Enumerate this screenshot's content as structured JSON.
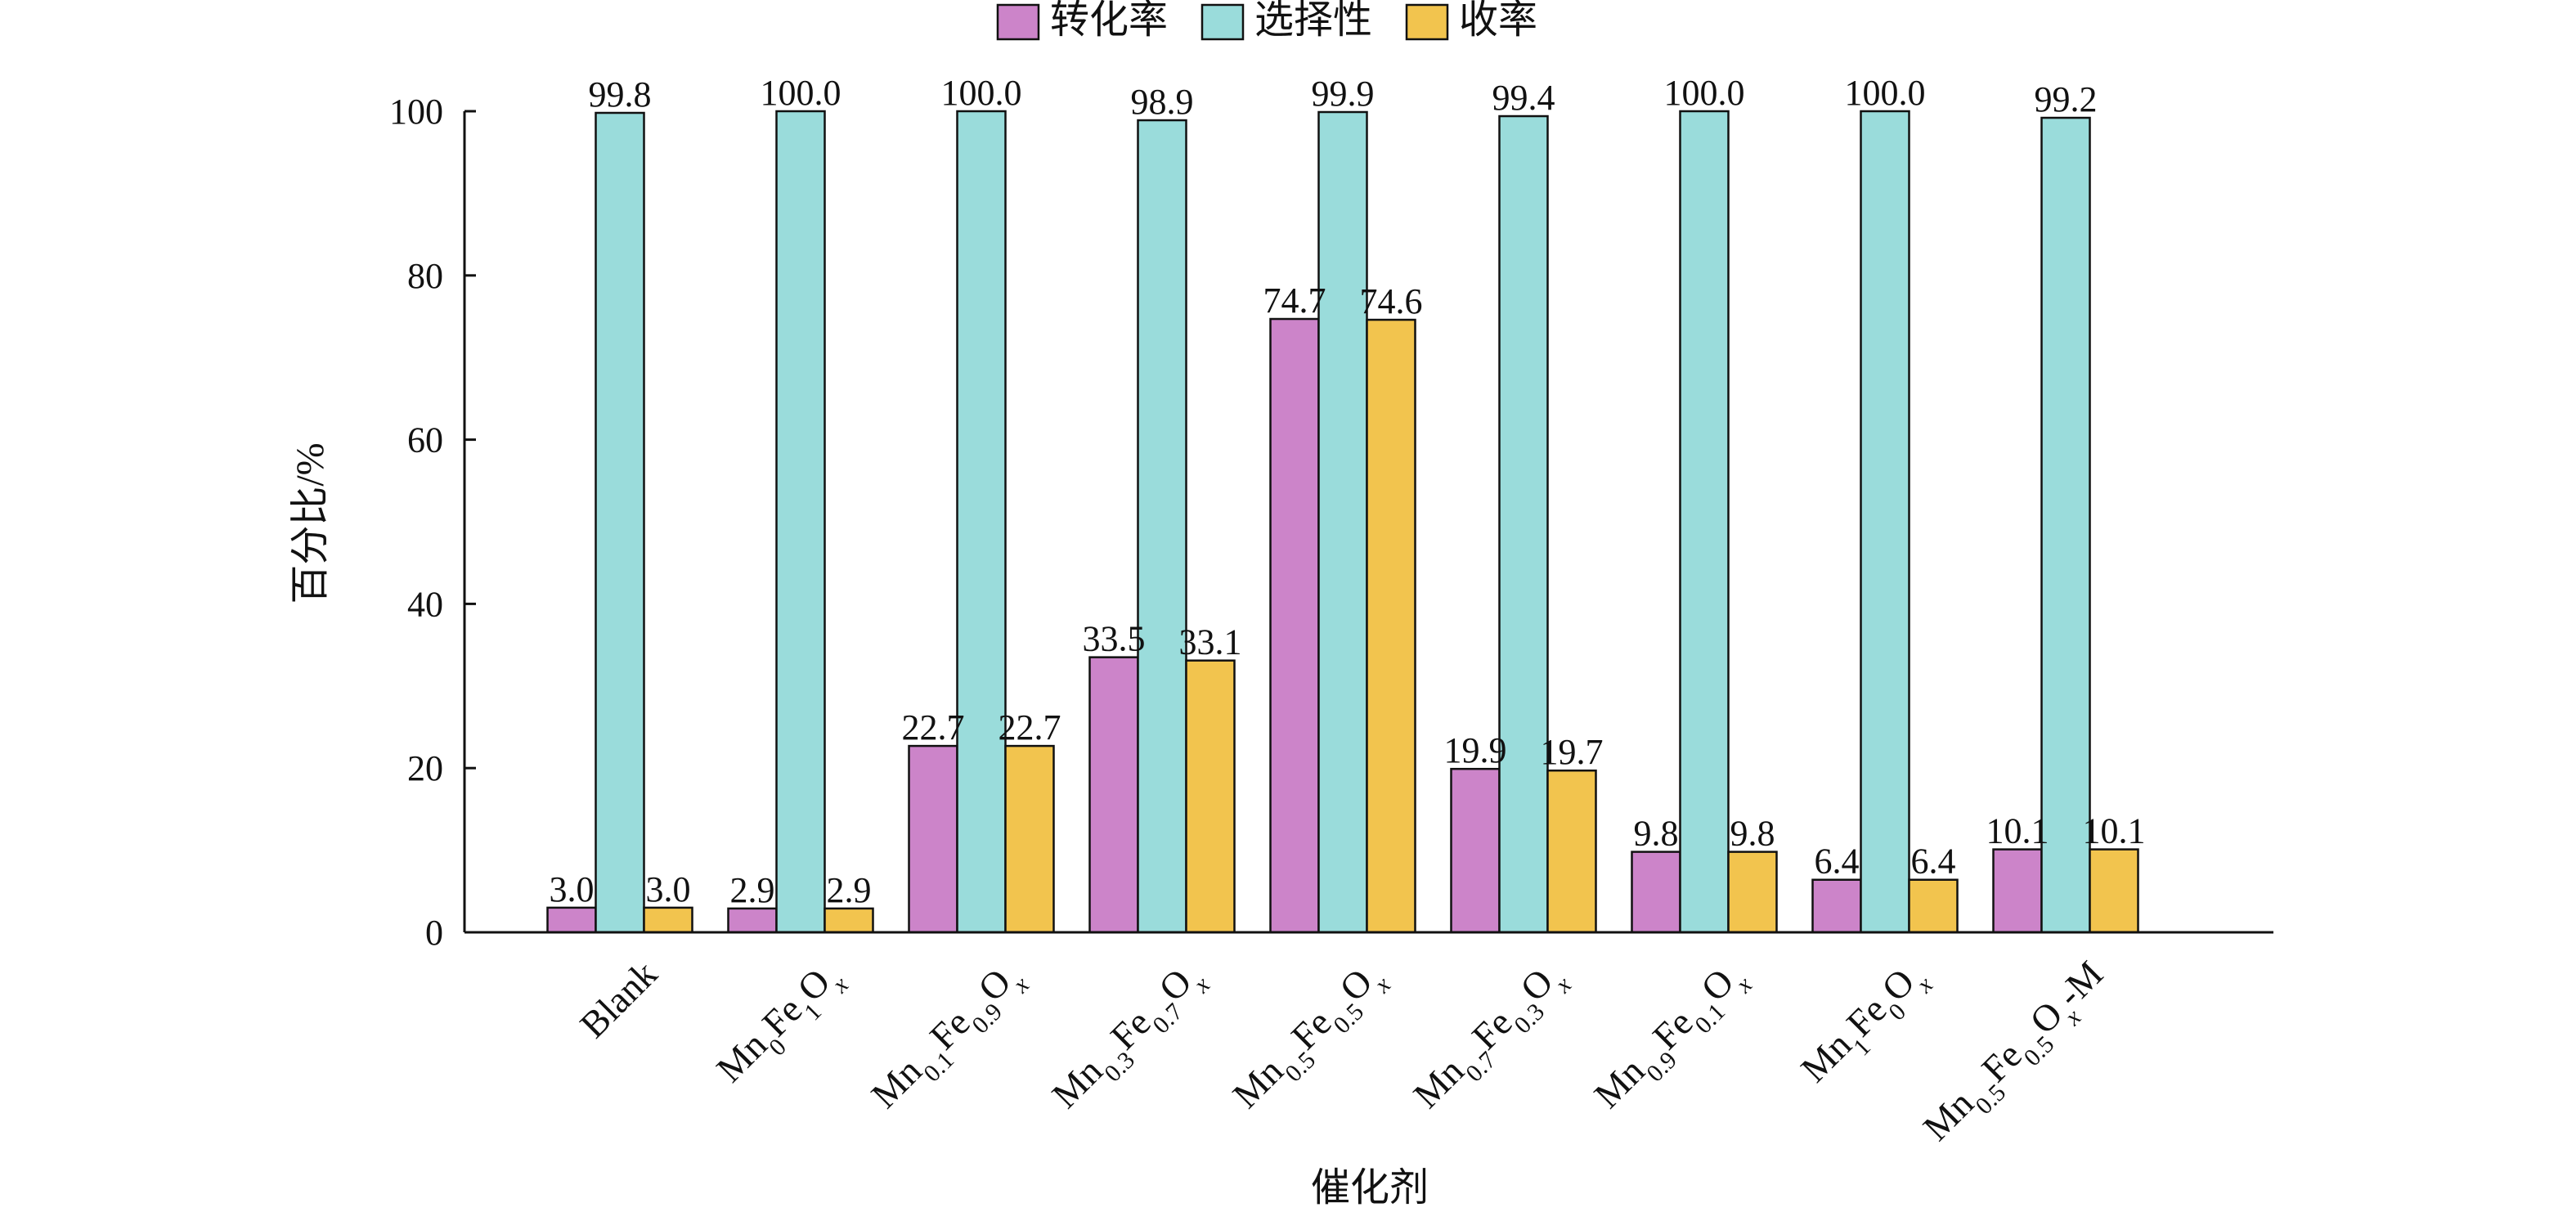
{
  "chart_data": {
    "type": "bar",
    "title": "",
    "xlabel": "催化剂",
    "ylabel": "百分比/%",
    "ylim": [
      0,
      100
    ],
    "yticks": [
      0,
      20,
      40,
      60,
      80,
      100
    ],
    "grid": false,
    "legend_position": "top-center",
    "categories": [
      [
        {
          "t": "Blank"
        }
      ],
      [
        {
          "t": "Mn"
        },
        {
          "t": "0",
          "sub": true
        },
        {
          "t": "Fe"
        },
        {
          "t": "1",
          "sub": true
        },
        {
          "t": "O"
        },
        {
          "t": "x",
          "sub": true,
          "italic": true
        }
      ],
      [
        {
          "t": "Mn"
        },
        {
          "t": "0.1",
          "sub": true
        },
        {
          "t": "Fe"
        },
        {
          "t": "0.9",
          "sub": true
        },
        {
          "t": "O"
        },
        {
          "t": "x",
          "sub": true,
          "italic": true
        }
      ],
      [
        {
          "t": "Mn"
        },
        {
          "t": "0.3",
          "sub": true
        },
        {
          "t": "Fe"
        },
        {
          "t": "0.7",
          "sub": true
        },
        {
          "t": "O"
        },
        {
          "t": "x",
          "sub": true,
          "italic": true
        }
      ],
      [
        {
          "t": "Mn"
        },
        {
          "t": "0.5",
          "sub": true
        },
        {
          "t": "Fe"
        },
        {
          "t": "0.5",
          "sub": true
        },
        {
          "t": "O"
        },
        {
          "t": "x",
          "sub": true,
          "italic": true
        }
      ],
      [
        {
          "t": "Mn"
        },
        {
          "t": "0.7",
          "sub": true
        },
        {
          "t": "Fe"
        },
        {
          "t": "0.3",
          "sub": true
        },
        {
          "t": "O"
        },
        {
          "t": "x",
          "sub": true,
          "italic": true
        }
      ],
      [
        {
          "t": "Mn"
        },
        {
          "t": "0.9",
          "sub": true
        },
        {
          "t": "Fe"
        },
        {
          "t": "0.1",
          "sub": true
        },
        {
          "t": "O"
        },
        {
          "t": "x",
          "sub": true,
          "italic": true
        }
      ],
      [
        {
          "t": "Mn"
        },
        {
          "t": "1",
          "sub": true
        },
        {
          "t": "Fe"
        },
        {
          "t": "0",
          "sub": true
        },
        {
          "t": "O"
        },
        {
          "t": "x",
          "sub": true,
          "italic": true
        }
      ],
      [
        {
          "t": "Mn"
        },
        {
          "t": "0.5",
          "sub": true
        },
        {
          "t": "Fe"
        },
        {
          "t": "0.5",
          "sub": true
        },
        {
          "t": "O"
        },
        {
          "t": "x",
          "sub": true,
          "italic": true
        },
        {
          "t": "-M"
        }
      ]
    ],
    "series": [
      {
        "name": "转化率",
        "color": "#cc84c9",
        "values": [
          3.0,
          2.9,
          22.7,
          33.5,
          74.7,
          19.9,
          9.8,
          6.4,
          10.1
        ],
        "labels": [
          "3.0",
          "2.9",
          "22.7",
          "33.5",
          "74.7",
          "19.9",
          "9.8",
          "6.4",
          "10.1"
        ]
      },
      {
        "name": "选择性",
        "color": "#9adcdb",
        "values": [
          99.8,
          100.0,
          100.0,
          98.9,
          99.9,
          99.4,
          100.0,
          100.0,
          99.2
        ],
        "labels": [
          "99.8",
          "100.0",
          "100.0",
          "98.9",
          "99.9",
          "99.4",
          "100.0",
          "100.0",
          "99.2"
        ]
      },
      {
        "name": "收率",
        "color": "#f2c44e",
        "values": [
          3.0,
          2.9,
          22.7,
          33.1,
          74.6,
          19.7,
          9.8,
          6.4,
          10.1
        ],
        "labels": [
          "3.0",
          "2.9",
          "22.7",
          "33.1",
          "74.6",
          "19.7",
          "9.8",
          "6.4",
          "10.1"
        ]
      }
    ]
  }
}
